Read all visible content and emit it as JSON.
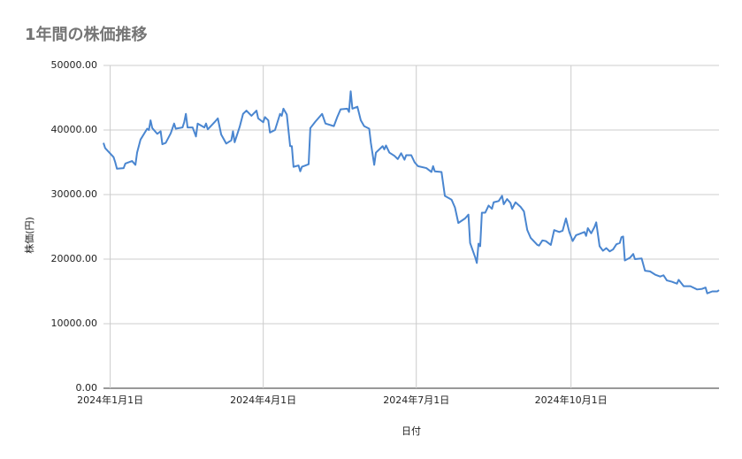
{
  "chart_data": {
    "type": "line",
    "title": "1年間の株価推移",
    "x_label": "日付",
    "y_label": "株価(円)",
    "x": [
      "2023-12-28",
      "2023-12-29",
      "2024-01-03",
      "2024-01-04",
      "2024-01-05",
      "2024-01-09",
      "2024-01-10",
      "2024-01-14",
      "2024-01-16",
      "2024-01-17",
      "2024-01-19",
      "2024-01-23",
      "2024-01-24",
      "2024-01-25",
      "2024-01-26",
      "2024-01-29",
      "2024-01-31",
      "2024-02-01",
      "2024-02-03",
      "2024-02-06",
      "2024-02-08",
      "2024-02-09",
      "2024-02-13",
      "2024-02-14",
      "2024-02-15",
      "2024-02-16",
      "2024-02-19",
      "2024-02-21",
      "2024-02-22",
      "2024-02-26",
      "2024-02-27",
      "2024-02-28",
      "2024-03-03",
      "2024-03-05",
      "2024-03-07",
      "2024-03-10",
      "2024-03-13",
      "2024-03-14",
      "2024-03-15",
      "2024-03-18",
      "2024-03-20",
      "2024-03-22",
      "2024-03-25",
      "2024-03-28",
      "2024-03-29",
      "2024-04-01",
      "2024-04-02",
      "2024-04-04",
      "2024-04-05",
      "2024-04-08",
      "2024-04-11",
      "2024-04-12",
      "2024-04-13",
      "2024-04-15",
      "2024-04-17",
      "2024-04-18",
      "2024-04-19",
      "2024-04-22",
      "2024-04-23",
      "2024-04-24",
      "2024-04-26",
      "2024-04-28",
      "2024-04-29",
      "2024-05-02",
      "2024-05-06",
      "2024-05-08",
      "2024-05-13",
      "2024-05-15",
      "2024-05-17",
      "2024-05-21",
      "2024-05-22",
      "2024-05-23",
      "2024-05-24",
      "2024-05-27",
      "2024-05-29",
      "2024-05-31",
      "2024-06-03",
      "2024-06-04",
      "2024-06-06",
      "2024-06-07",
      "2024-06-11",
      "2024-06-12",
      "2024-06-13",
      "2024-06-15",
      "2024-06-18",
      "2024-06-20",
      "2024-06-22",
      "2024-06-24",
      "2024-06-25",
      "2024-06-28",
      "2024-06-30",
      "2024-07-02",
      "2024-07-07",
      "2024-07-10",
      "2024-07-11",
      "2024-07-12",
      "2024-07-16",
      "2024-07-18",
      "2024-07-22",
      "2024-07-24",
      "2024-07-26",
      "2024-07-30",
      "2024-08-01",
      "2024-08-02",
      "2024-08-05",
      "2024-08-06",
      "2024-08-07",
      "2024-08-08",
      "2024-08-09",
      "2024-08-11",
      "2024-08-13",
      "2024-08-15",
      "2024-08-16",
      "2024-08-19",
      "2024-08-21",
      "2024-08-22",
      "2024-08-24",
      "2024-08-26",
      "2024-08-27",
      "2024-08-29",
      "2024-09-01",
      "2024-09-03",
      "2024-09-05",
      "2024-09-07",
      "2024-09-11",
      "2024-09-12",
      "2024-09-14",
      "2024-09-16",
      "2024-09-19",
      "2024-09-21",
      "2024-09-24",
      "2024-09-26",
      "2024-09-28",
      "2024-09-30",
      "2024-10-02",
      "2024-10-04",
      "2024-10-06",
      "2024-10-09",
      "2024-10-10",
      "2024-10-11",
      "2024-10-13",
      "2024-10-15",
      "2024-10-16",
      "2024-10-18",
      "2024-10-20",
      "2024-10-22",
      "2024-10-24",
      "2024-10-26",
      "2024-10-28",
      "2024-10-30",
      "2024-10-31",
      "2024-11-01",
      "2024-11-02",
      "2024-11-05",
      "2024-11-07",
      "2024-11-08",
      "2024-11-12",
      "2024-11-14",
      "2024-11-17",
      "2024-11-20",
      "2024-11-23",
      "2024-11-25",
      "2024-11-27",
      "2024-11-30",
      "2024-12-03",
      "2024-12-04",
      "2024-12-07",
      "2024-12-11",
      "2024-12-15",
      "2024-12-18",
      "2024-12-20",
      "2024-12-21",
      "2024-12-24",
      "2024-12-27",
      "2024-12-28"
    ],
    "series": [
      {
        "name": "株価",
        "color": "#4a86d0",
        "values": [
          38000,
          37200,
          35800,
          35000,
          34000,
          34100,
          34800,
          35200,
          34600,
          36500,
          38500,
          40200,
          40000,
          41500,
          40300,
          39400,
          39800,
          37800,
          38000,
          39500,
          41000,
          40200,
          40400,
          41200,
          42500,
          40400,
          40400,
          39000,
          41000,
          40400,
          41000,
          40100,
          41200,
          41800,
          39300,
          37900,
          38400,
          39800,
          38100,
          40500,
          42500,
          43000,
          42200,
          43000,
          41800,
          41200,
          42000,
          41500,
          39600,
          40000,
          42500,
          42200,
          43300,
          42400,
          37500,
          37500,
          34300,
          34500,
          33600,
          34300,
          34500,
          34700,
          40300,
          41300,
          42500,
          41000,
          40600,
          42000,
          43200,
          43300,
          42800,
          46000,
          43300,
          43600,
          41500,
          40600,
          40200,
          38000,
          34600,
          36500,
          37500,
          37000,
          37600,
          36500,
          36000,
          35500,
          36400,
          35400,
          36100,
          36100,
          35000,
          34400,
          34100,
          33500,
          34400,
          33600,
          33500,
          29800,
          29200,
          28000,
          25600,
          26300,
          26900,
          22500,
          20300,
          19400,
          22400,
          22000,
          27200,
          27200,
          28300,
          27800,
          28800,
          29000,
          29800,
          28500,
          29300,
          28700,
          27800,
          28800,
          28100,
          27400,
          24500,
          23300,
          22200,
          22100,
          22900,
          22800,
          22200,
          24500,
          24200,
          24400,
          26300,
          24200,
          22800,
          23700,
          23900,
          24200,
          23600,
          24800,
          24000,
          25000,
          25700,
          22000,
          21300,
          21700,
          21200,
          21500,
          22300,
          22500,
          23400,
          23500,
          19800,
          20200,
          20800,
          20000,
          20100,
          18200,
          18100,
          17600,
          17300,
          17500,
          16700,
          16500,
          16200,
          16800,
          15800,
          15800,
          15300,
          15400,
          15600,
          14700,
          15000,
          15000,
          15200
        ]
      }
    ],
    "xlim": [
      "2023-12-28",
      "2024-12-28"
    ],
    "xticks": [
      {
        "value": "2024-01-01",
        "label": "2024年1月1日"
      },
      {
        "value": "2024-04-01",
        "label": "2024年4月1日"
      },
      {
        "value": "2024-07-01",
        "label": "2024年7月1日"
      },
      {
        "value": "2024-10-01",
        "label": "2024年10月1日"
      }
    ],
    "ylim": [
      0,
      50000
    ],
    "yticks": [
      {
        "value": 0,
        "label": "0.00"
      },
      {
        "value": 10000,
        "label": "10000.00"
      },
      {
        "value": 20000,
        "label": "20000.00"
      },
      {
        "value": 30000,
        "label": "30000.00"
      },
      {
        "value": 40000,
        "label": "40000.00"
      },
      {
        "value": 50000,
        "label": "50000.00"
      }
    ],
    "grid": true
  }
}
